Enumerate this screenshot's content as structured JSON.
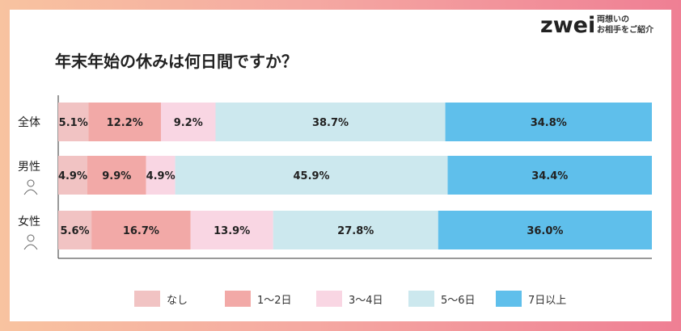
{
  "logo": {
    "text": "zwei",
    "tagline_line1": "両想いの",
    "tagline_line2": "お相手をご紹介"
  },
  "chart_data": {
    "type": "bar",
    "orientation": "horizontal",
    "stacked": true,
    "percent": true,
    "title": "年末年始の休みは何日間ですか？",
    "categories": [
      "全体",
      "男性",
      "女性"
    ],
    "category_icons": [
      "",
      "man-icon",
      "woman-icon"
    ],
    "series": [
      {
        "name": "なし",
        "values": [
          5.1,
          4.9,
          5.6
        ],
        "labels": [
          "5.1%",
          "4.9%",
          "5.6%"
        ],
        "color": "#f1c3c3"
      },
      {
        "name": "1～2日",
        "values": [
          12.2,
          9.9,
          16.7
        ],
        "labels": [
          "12.2%",
          "9.9%",
          "16.7%"
        ],
        "color": "#f2a9a7"
      },
      {
        "name": "3～4日",
        "values": [
          9.2,
          4.9,
          13.9
        ],
        "labels": [
          "9.2%",
          "4.9%",
          "13.9%"
        ],
        "color": "#f9d6e3"
      },
      {
        "name": "5～6日",
        "values": [
          38.7,
          45.9,
          27.8
        ],
        "labels": [
          "38.7%",
          "45.9%",
          "27.8%"
        ],
        "color": "#cce8ee"
      },
      {
        "name": "7日以上",
        "values": [
          34.8,
          34.4,
          36.0
        ],
        "labels": [
          "34.8%",
          "34.4%",
          "36.0%"
        ],
        "color": "#5fbfeb"
      }
    ],
    "legend_position": "bottom",
    "grid": false
  }
}
